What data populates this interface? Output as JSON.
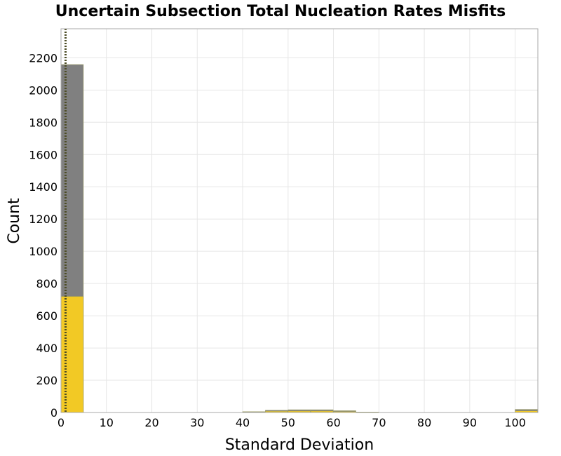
{
  "chart_data": {
    "type": "bar",
    "title": "Uncertain Subsection Total Nucleation Rates Misfits",
    "xlabel": "Standard Deviation",
    "ylabel": "Count",
    "xlim": [
      0,
      105
    ],
    "ylim": [
      0,
      2380
    ],
    "xticks": [
      0,
      10,
      20,
      30,
      40,
      50,
      60,
      70,
      80,
      90,
      100
    ],
    "yticks": [
      0,
      200,
      400,
      600,
      800,
      1000,
      1200,
      1400,
      1600,
      1800,
      2000,
      2200
    ],
    "grid": true,
    "bin_width": 5,
    "reference_line_x": 1,
    "colors": {
      "total": "#808080",
      "subset": "#f2c925",
      "reference": "#4d4d26",
      "grid": "#e6e6e6",
      "frame": "#aaaaaa"
    },
    "series": [
      {
        "bins": [
          {
            "x0": 0,
            "x1": 5,
            "value": 2158
          },
          {
            "x0": 40,
            "x1": 45,
            "value": 5
          },
          {
            "x0": 45,
            "x1": 50,
            "value": 14
          },
          {
            "x0": 50,
            "x1": 55,
            "value": 17
          },
          {
            "x0": 55,
            "x1": 60,
            "value": 17
          },
          {
            "x0": 60,
            "x1": 65,
            "value": 11
          },
          {
            "x0": 65,
            "x1": 70,
            "value": 3
          },
          {
            "x0": 100,
            "x1": 105,
            "value": 19
          }
        ]
      },
      {
        "bins": [
          {
            "x0": 0,
            "x1": 5,
            "value": 720
          },
          {
            "x0": 40,
            "x1": 45,
            "value": 2
          },
          {
            "x0": 45,
            "x1": 50,
            "value": 8
          },
          {
            "x0": 50,
            "x1": 55,
            "value": 9
          },
          {
            "x0": 55,
            "x1": 60,
            "value": 9
          },
          {
            "x0": 60,
            "x1": 65,
            "value": 6
          },
          {
            "x0": 65,
            "x1": 70,
            "value": 1
          },
          {
            "x0": 100,
            "x1": 105,
            "value": 10
          }
        ]
      }
    ]
  }
}
